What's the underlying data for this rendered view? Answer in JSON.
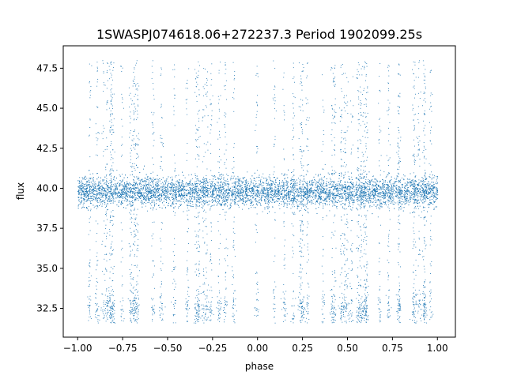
{
  "chart_data": {
    "type": "scatter",
    "title": "1SWASPJ074618.06+272237.3 Period 1902099.25s",
    "xlabel": "phase",
    "ylabel": "flux",
    "xlim": [
      -1.08,
      1.1
    ],
    "ylim": [
      30.7,
      48.9
    ],
    "xticks": [
      -1.0,
      -0.75,
      -0.5,
      -0.25,
      0.0,
      0.25,
      0.5,
      0.75,
      1.0
    ],
    "xtick_labels": [
      "−1.00",
      "−0.75",
      "−0.50",
      "−0.25",
      "0.00",
      "0.25",
      "0.50",
      "0.75",
      "1.00"
    ],
    "yticks": [
      32.5,
      35.0,
      37.5,
      40.0,
      42.5,
      45.0,
      47.5
    ],
    "ytick_labels": [
      "32.5",
      "35.0",
      "37.5",
      "40.0",
      "42.5",
      "45.0",
      "47.5"
    ],
    "grid": false,
    "marker_color": "#1f77b4",
    "series": [
      {
        "description_points": "dense phase-folded light curve; core band",
        "x_range": [
          -1.0,
          1.0
        ],
        "y_center": 39.8,
        "y_spread": [
          38.6,
          41.0
        ],
        "outlier_range": [
          31.6,
          48.0
        ],
        "low_flux_cluster_range": [
          31.6,
          34.3
        ]
      }
    ]
  }
}
